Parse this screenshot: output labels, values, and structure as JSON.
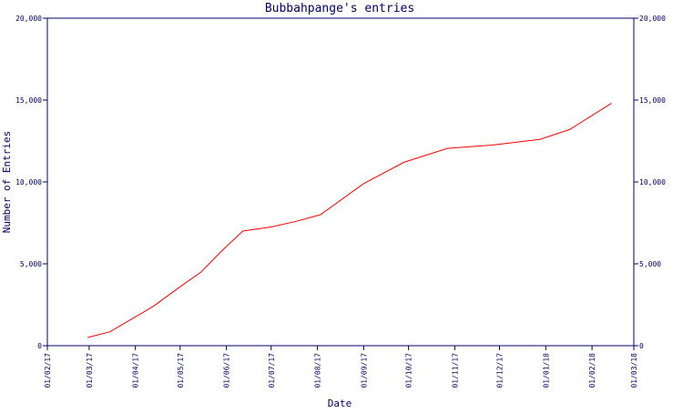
{
  "chart_data": {
    "type": "line",
    "title": "Bubbahpange's entries",
    "xlabel": "Date",
    "ylabel": "Number of Entries",
    "x_ticks": [
      "01/02/17",
      "01/03/17",
      "01/04/17",
      "01/05/17",
      "01/06/17",
      "01/07/17",
      "01/08/17",
      "01/09/17",
      "01/10/17",
      "01/11/17",
      "01/12/17",
      "01/01/18",
      "01/02/18",
      "01/03/18"
    ],
    "y_ticks": [
      0,
      5000,
      10000,
      15000,
      20000
    ],
    "y_tick_labels": [
      "0",
      "5,000",
      "10,000",
      "15,000",
      "20,000"
    ],
    "ylim": [
      0,
      20000
    ],
    "xlim": [
      "2017-02-01",
      "2018-03-01"
    ],
    "grid": false,
    "colors": {
      "axis": "#000066",
      "line": "#ff0000",
      "background": "#ffffff"
    },
    "series": [
      {
        "color": "#ff0000",
        "points": [
          {
            "x": "2017-02-28",
            "y": 500
          },
          {
            "x": "2017-03-15",
            "y": 850
          },
          {
            "x": "2017-03-29",
            "y": 1600
          },
          {
            "x": "2017-04-13",
            "y": 2400
          },
          {
            "x": "2017-05-01",
            "y": 3600
          },
          {
            "x": "2017-05-15",
            "y": 4500
          },
          {
            "x": "2017-05-29",
            "y": 5800
          },
          {
            "x": "2017-06-12",
            "y": 7000
          },
          {
            "x": "2017-07-01",
            "y": 7250
          },
          {
            "x": "2017-07-18",
            "y": 7600
          },
          {
            "x": "2017-08-03",
            "y": 8000
          },
          {
            "x": "2017-09-01",
            "y": 9900
          },
          {
            "x": "2017-09-28",
            "y": 11200
          },
          {
            "x": "2017-10-27",
            "y": 12050
          },
          {
            "x": "2017-11-26",
            "y": 12250
          },
          {
            "x": "2017-12-28",
            "y": 12600
          },
          {
            "x": "2018-01-17",
            "y": 13200
          },
          {
            "x": "2018-02-14",
            "y": 14800
          }
        ]
      }
    ]
  }
}
